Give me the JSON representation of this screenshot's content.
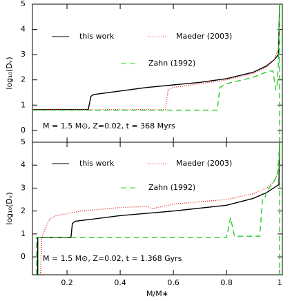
{
  "chart_data": [
    {
      "type": "line",
      "ylabel": "log₁₀(Dᵥ)",
      "annotation": "M = 1.5 M⊙, Z=0.02, t = 368 Myrs",
      "xlim": [
        0.07,
        1.01
      ],
      "ylim": [
        -0.47,
        5
      ],
      "xticks": [
        0.2,
        0.4,
        0.6,
        0.8,
        1
      ],
      "yticks": [
        0,
        1,
        2,
        3,
        4,
        5
      ],
      "series": [
        {
          "name": "this work",
          "color": "#000000",
          "dash": "none",
          "x": [
            0.07,
            0.28,
            0.29,
            0.3,
            0.5,
            0.7,
            0.8,
            0.9,
            0.95,
            0.98,
            0.995,
            1.0
          ],
          "values": [
            0.82,
            0.83,
            1.35,
            1.42,
            1.7,
            1.9,
            2.05,
            2.3,
            2.55,
            2.8,
            3.0,
            5
          ]
        },
        {
          "name": "Maeder (2003)",
          "color": "#e8202a",
          "dash": "1,2",
          "x": [
            0.07,
            0.57,
            0.58,
            0.6,
            0.7,
            0.8,
            0.9,
            0.95,
            0.98,
            0.997,
            1.0
          ],
          "values": [
            0.82,
            0.82,
            1.6,
            1.7,
            1.85,
            2.0,
            2.25,
            2.5,
            2.8,
            3.3,
            5
          ]
        },
        {
          "name": "Zahn (1992)",
          "color": "#22cc22",
          "dash": "8,5",
          "x": [
            0.07,
            0.765,
            0.775,
            0.8,
            0.9,
            0.96,
            0.975,
            0.985,
            0.99,
            0.995,
            1.0,
            1.0
          ],
          "values": [
            0.8,
            0.8,
            1.7,
            1.85,
            2.1,
            2.35,
            2.35,
            1.6,
            1.75,
            2.6,
            5,
            -0.47
          ]
        }
      ]
    },
    {
      "type": "line",
      "ylabel": "log₁₀(Dᵥ)",
      "xlabel": "M/M∗",
      "annotation": "M = 1.5 M⊙, Z=0.02, t = 1.368 Gyrs",
      "xlim": [
        0.07,
        1.01
      ],
      "ylim": [
        -0.78,
        5
      ],
      "xticks": [
        0.2,
        0.4,
        0.6,
        0.8,
        1
      ],
      "yticks": [
        0,
        1,
        2,
        3,
        4,
        5
      ],
      "series": [
        {
          "name": "this work",
          "color": "#000000",
          "dash": "none",
          "x": [
            0.09,
            0.09,
            0.215,
            0.22,
            0.23,
            0.4,
            0.6,
            0.8,
            0.9,
            0.95,
            0.99,
            0.997,
            1.0
          ],
          "values": [
            -0.78,
            0.85,
            0.85,
            1.45,
            1.55,
            1.8,
            2.0,
            2.25,
            2.55,
            2.8,
            3.1,
            3.15,
            5
          ]
        },
        {
          "name": "Maeder (2003)",
          "color": "#e8202a",
          "dash": "1,2",
          "x": [
            0.1,
            0.105,
            0.11,
            0.13,
            0.14,
            0.16,
            0.25,
            0.4,
            0.5,
            0.52,
            0.6,
            0.8,
            0.9,
            0.95,
            0.98,
            0.997,
            1.0
          ],
          "values": [
            -0.78,
            0.9,
            1.0,
            1.55,
            1.7,
            1.8,
            2.0,
            2.15,
            2.2,
            2.1,
            2.3,
            2.5,
            2.75,
            3.0,
            3.3,
            3.8,
            5
          ]
        },
        {
          "name": "Zahn (1992)",
          "color": "#22cc22",
          "dash": "8,5",
          "x": [
            0.085,
            0.085,
            0.8,
            0.815,
            0.83,
            0.925,
            0.935,
            0.945,
            0.95,
            0.96,
            0.98,
            0.993,
            1.0,
            1.0
          ],
          "values": [
            -0.78,
            0.85,
            0.85,
            1.7,
            0.9,
            0.9,
            2.5,
            2.55,
            2.9,
            3.0,
            3.3,
            3.7,
            5,
            -0.78
          ]
        }
      ]
    }
  ]
}
